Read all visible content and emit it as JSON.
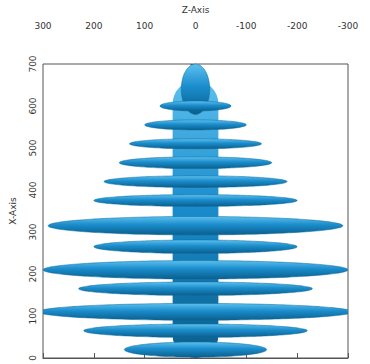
{
  "chart_data": {
    "type": "isosurface",
    "xlabel": "Z-Axis",
    "ylabel": "X-Axis",
    "xlim": [
      300,
      -300
    ],
    "xticks": [
      300,
      200,
      100,
      0,
      -100,
      -200,
      -300
    ],
    "ylim": [
      0,
      700
    ],
    "yticks": [
      0,
      100,
      200,
      300,
      400,
      500,
      600,
      700
    ],
    "grid": false,
    "color": "#1a8ccc",
    "trunk": {
      "x_from": 0,
      "x_to": 660,
      "half_width_z": 45
    },
    "lobes": [
      {
        "center_x": 640,
        "half_width_z": 28,
        "half_height_x": 60
      },
      {
        "center_x": 600,
        "half_width_z": 70,
        "half_height_x": 12
      },
      {
        "center_x": 555,
        "half_width_z": 100,
        "half_height_x": 12
      },
      {
        "center_x": 510,
        "half_width_z": 130,
        "half_height_x": 12
      },
      {
        "center_x": 465,
        "half_width_z": 150,
        "half_height_x": 14
      },
      {
        "center_x": 420,
        "half_width_z": 180,
        "half_height_x": 14
      },
      {
        "center_x": 375,
        "half_width_z": 200,
        "half_height_x": 14
      },
      {
        "center_x": 315,
        "half_width_z": 290,
        "half_height_x": 22
      },
      {
        "center_x": 265,
        "half_width_z": 200,
        "half_height_x": 16
      },
      {
        "center_x": 210,
        "half_width_z": 300,
        "half_height_x": 22
      },
      {
        "center_x": 165,
        "half_width_z": 230,
        "half_height_x": 16
      },
      {
        "center_x": 110,
        "half_width_z": 310,
        "half_height_x": 20
      },
      {
        "center_x": 65,
        "half_width_z": 220,
        "half_height_x": 16
      },
      {
        "center_x": 20,
        "half_width_z": 140,
        "half_height_x": 18
      }
    ]
  }
}
